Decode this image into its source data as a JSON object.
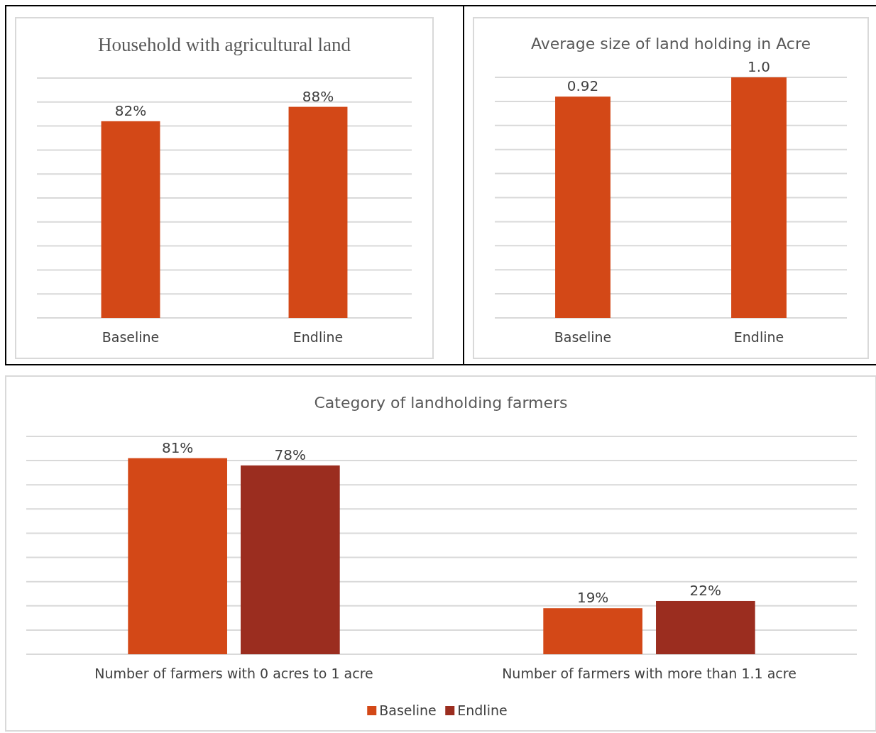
{
  "chart_data": [
    {
      "type": "bar",
      "title": "Household with agricultural land",
      "categories": [
        "Baseline",
        "Endline"
      ],
      "values": [
        82,
        88
      ],
      "value_labels": [
        "82%",
        "88%"
      ],
      "color": "#d34817",
      "ylim": [
        0,
        100
      ],
      "yticks": [
        {
          "value": 0,
          "label": null
        },
        {
          "value": 10,
          "label": null
        },
        {
          "value": 20,
          "label": null
        },
        {
          "value": 30,
          "label": null
        },
        {
          "value": 40,
          "label": null
        },
        {
          "value": 50,
          "label": null
        },
        {
          "value": 60,
          "label": null
        },
        {
          "value": 70,
          "label": null
        },
        {
          "value": 80,
          "label": null
        },
        {
          "value": 90,
          "label": null
        },
        {
          "value": 100,
          "label": null
        }
      ],
      "grid": "y",
      "tick_labels": "x"
    },
    {
      "type": "bar",
      "title": "Average size of land holding in Acre",
      "categories": [
        "Baseline",
        "Endline"
      ],
      "values": [
        0.92,
        1.0
      ],
      "value_labels": [
        "0.92",
        "1.0"
      ],
      "color": "#d34817",
      "ylim": [
        0,
        1
      ],
      "yticks": [
        {
          "value": 0,
          "label": null
        },
        {
          "value": 0.1,
          "label": null
        },
        {
          "value": 0.2,
          "label": null
        },
        {
          "value": 0.3,
          "label": null
        },
        {
          "value": 0.4,
          "label": null
        },
        {
          "value": 0.5,
          "label": null
        },
        {
          "value": 0.6,
          "label": null
        },
        {
          "value": 0.7,
          "label": null
        },
        {
          "value": 0.8,
          "label": null
        },
        {
          "value": 0.9,
          "label": null
        },
        {
          "value": 1,
          "label": null
        }
      ],
      "grid": "y",
      "tick_labels": "x"
    },
    {
      "type": "bar",
      "title": "Category of landholding  farmers",
      "categories": [
        "Number of farmers with  0 acres to 1 acre",
        "Number of farmers with more than 1.1 acre"
      ],
      "series": [
        {
          "name": "Baseline",
          "color": "#d34817",
          "values": [
            81,
            19
          ],
          "value_labels": [
            "81%",
            "19%"
          ]
        },
        {
          "name": "Endline",
          "color": "#9b2d1f",
          "values": [
            78,
            22
          ],
          "value_labels": [
            "78%",
            "22%"
          ]
        }
      ],
      "ylim": [
        0,
        90
      ],
      "yticks": [
        {
          "value": 0,
          "label": null
        },
        {
          "value": 10,
          "label": null
        },
        {
          "value": 20,
          "label": null
        },
        {
          "value": 30,
          "label": null
        },
        {
          "value": 40,
          "label": null
        },
        {
          "value": 50,
          "label": null
        },
        {
          "value": 60,
          "label": null
        },
        {
          "value": 70,
          "label": null
        },
        {
          "value": 80,
          "label": null
        },
        {
          "value": 90,
          "label": null
        }
      ],
      "grid": "y",
      "tick_labels": "x",
      "legend": "bottom"
    }
  ]
}
